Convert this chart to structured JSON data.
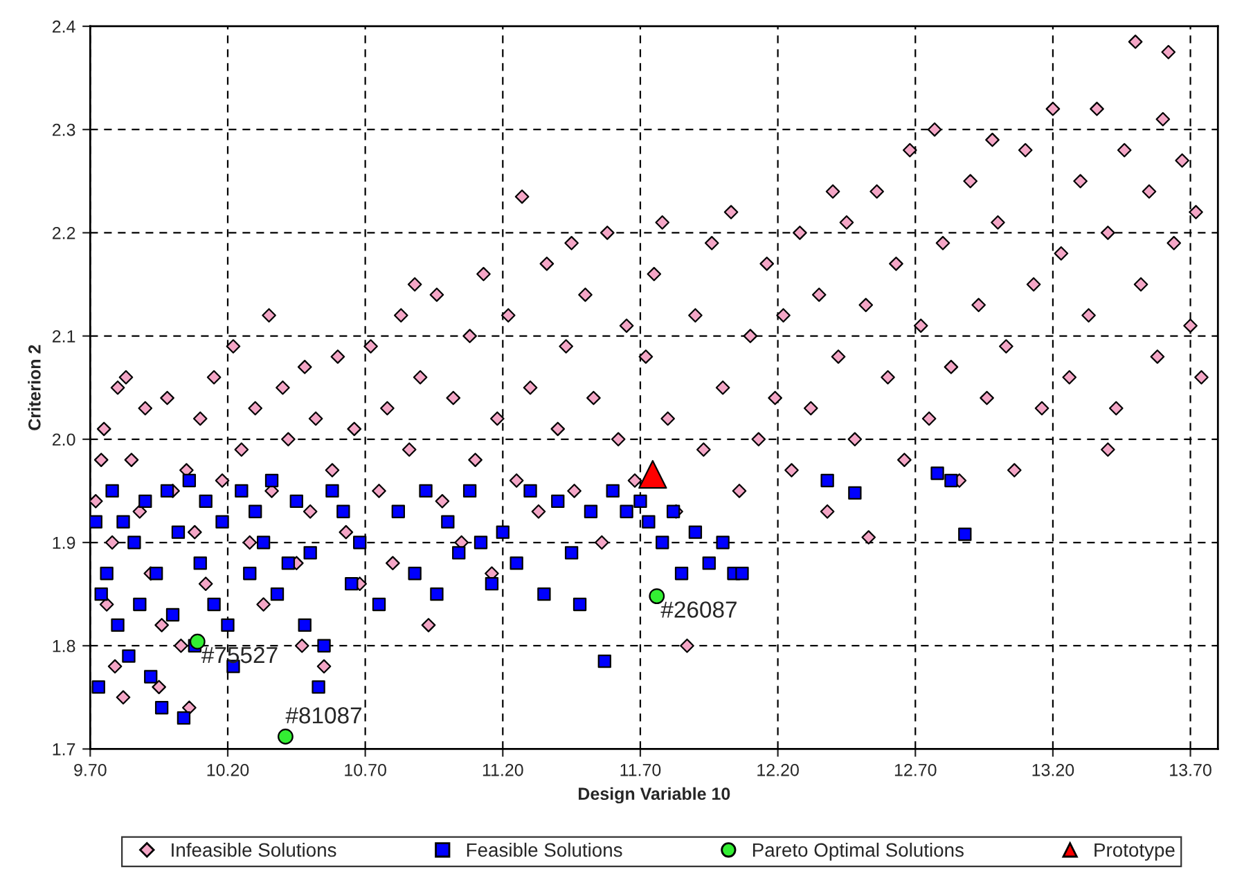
{
  "chart_data": {
    "type": "scatter",
    "xlabel": "Design Variable 10",
    "ylabel": "Criterion 2",
    "xlim": [
      9.7,
      13.8
    ],
    "ylim": [
      1.7,
      2.4
    ],
    "xticks": [
      {
        "value": 9.7,
        "label": "9.70"
      },
      {
        "value": 10.2,
        "label": "10.20"
      },
      {
        "value": 10.7,
        "label": "10.70"
      },
      {
        "value": 11.2,
        "label": "11.20"
      },
      {
        "value": 11.7,
        "label": "11.70"
      },
      {
        "value": 12.2,
        "label": "12.20"
      },
      {
        "value": 12.7,
        "label": "12.70"
      },
      {
        "value": 13.2,
        "label": "13.20"
      },
      {
        "value": 13.7,
        "label": "13.70"
      }
    ],
    "yticks": [
      {
        "value": 1.7,
        "label": "1.7"
      },
      {
        "value": 1.8,
        "label": "1.8"
      },
      {
        "value": 1.9,
        "label": "1.9"
      },
      {
        "value": 2.0,
        "label": "2.0"
      },
      {
        "value": 2.1,
        "label": "2.1"
      },
      {
        "value": 2.2,
        "label": "2.2"
      },
      {
        "value": 2.3,
        "label": "2.3"
      },
      {
        "value": 2.4,
        "label": "2.4"
      }
    ],
    "grid": true,
    "legend": "bottom",
    "series": [
      {
        "name": "Infeasible Solutions",
        "color": "#f4a6c6",
        "marker": "diamond",
        "x": [
          9.72,
          9.74,
          9.75,
          9.78,
          9.8,
          9.83,
          9.76,
          9.79,
          9.85,
          9.88,
          9.9,
          9.92,
          9.96,
          9.98,
          10.0,
          10.03,
          10.05,
          10.08,
          10.1,
          10.12,
          10.15,
          10.18,
          9.82,
          9.95,
          10.06,
          10.22,
          10.25,
          10.28,
          10.3,
          10.33,
          10.36,
          10.4,
          10.42,
          10.45,
          10.48,
          10.5,
          10.52,
          10.55,
          10.58,
          10.6,
          10.63,
          10.66,
          10.68,
          10.35,
          10.47,
          10.72,
          10.75,
          10.78,
          10.8,
          10.83,
          10.86,
          10.9,
          10.93,
          10.96,
          10.98,
          11.02,
          11.05,
          11.08,
          11.1,
          11.13,
          11.16,
          11.18,
          10.88,
          11.22,
          11.25,
          11.27,
          11.3,
          11.33,
          11.36,
          11.4,
          11.43,
          11.46,
          11.5,
          11.53,
          11.56,
          11.58,
          11.62,
          11.65,
          11.68,
          11.45,
          11.72,
          11.75,
          11.8,
          11.83,
          11.87,
          11.9,
          11.93,
          11.96,
          12.0,
          12.03,
          12.06,
          12.1,
          12.13,
          12.16,
          12.19,
          11.78,
          12.22,
          12.25,
          12.28,
          12.32,
          12.35,
          12.38,
          12.42,
          12.45,
          12.48,
          12.52,
          12.53,
          12.56,
          12.6,
          12.63,
          12.66,
          12.68,
          12.4,
          12.72,
          12.75,
          12.77,
          12.8,
          12.83,
          12.86,
          12.9,
          12.93,
          12.96,
          13.0,
          13.03,
          13.06,
          13.1,
          13.13,
          13.16,
          13.2,
          12.98,
          13.23,
          13.26,
          13.3,
          13.33,
          13.36,
          13.4,
          13.43,
          13.46,
          13.5,
          13.52,
          13.55,
          13.58,
          13.62,
          13.64,
          13.67,
          13.7,
          13.72,
          13.74,
          13.4,
          13.6
        ],
        "values": [
          1.94,
          1.98,
          2.01,
          1.9,
          2.05,
          2.06,
          1.84,
          1.78,
          1.98,
          1.93,
          2.03,
          1.87,
          1.82,
          2.04,
          1.95,
          1.8,
          1.97,
          1.91,
          2.02,
          1.86,
          2.06,
          1.96,
          1.75,
          1.76,
          1.74,
          2.09,
          1.99,
          1.9,
          2.03,
          1.84,
          1.95,
          2.05,
          2.0,
          1.88,
          2.07,
          1.93,
          2.02,
          1.78,
          1.97,
          2.08,
          1.91,
          2.01,
          1.86,
          2.12,
          1.8,
          2.09,
          1.95,
          2.03,
          1.88,
          2.12,
          1.99,
          2.06,
          1.82,
          2.14,
          1.94,
          2.04,
          1.9,
          2.1,
          1.98,
          2.16,
          1.87,
          2.02,
          2.15,
          2.12,
          1.96,
          2.235,
          2.05,
          1.93,
          2.17,
          2.01,
          2.09,
          1.95,
          2.14,
          2.04,
          1.9,
          2.2,
          2.0,
          2.11,
          1.96,
          2.19,
          2.08,
          2.16,
          2.02,
          1.93,
          1.8,
          2.12,
          1.99,
          2.19,
          2.05,
          2.22,
          1.95,
          2.1,
          2.0,
          2.17,
          2.04,
          2.21,
          2.12,
          1.97,
          2.2,
          2.03,
          2.14,
          1.93,
          2.08,
          2.21,
          2.0,
          2.13,
          1.905,
          2.24,
          2.06,
          2.17,
          1.98,
          2.28,
          2.24,
          2.11,
          2.02,
          2.3,
          2.19,
          2.07,
          1.96,
          2.25,
          2.13,
          2.04,
          2.21,
          2.09,
          1.97,
          2.28,
          2.15,
          2.03,
          2.32,
          2.29,
          2.18,
          2.06,
          2.25,
          2.12,
          2.32,
          2.2,
          2.03,
          2.28,
          2.385,
          2.15,
          2.24,
          2.08,
          2.375,
          2.19,
          2.27,
          2.11,
          2.22,
          2.06,
          1.99,
          2.31
        ]
      },
      {
        "name": "Feasible Solutions",
        "color": "#0000ff",
        "marker": "square",
        "x": [
          9.72,
          9.73,
          9.74,
          9.76,
          9.78,
          9.8,
          9.82,
          9.84,
          9.86,
          9.88,
          9.9,
          9.92,
          9.94,
          9.96,
          9.98,
          10.0,
          10.02,
          10.04,
          10.06,
          10.08,
          10.1,
          10.12,
          10.15,
          10.18,
          10.2,
          10.22,
          10.25,
          10.28,
          10.3,
          10.33,
          10.36,
          10.38,
          10.42,
          10.45,
          10.48,
          10.5,
          10.53,
          10.55,
          10.58,
          10.62,
          10.65,
          10.68,
          10.75,
          10.82,
          10.88,
          10.92,
          10.96,
          11.0,
          11.04,
          11.08,
          11.12,
          11.16,
          11.2,
          11.25,
          11.3,
          11.35,
          11.4,
          11.45,
          11.48,
          11.52,
          11.57,
          11.6,
          11.65,
          11.7,
          11.73,
          11.78,
          11.82,
          11.85,
          11.9,
          11.95,
          12.0,
          12.04,
          12.07,
          12.38,
          12.48,
          12.78,
          12.83,
          12.88
        ],
        "values": [
          1.92,
          1.76,
          1.85,
          1.87,
          1.95,
          1.82,
          1.92,
          1.79,
          1.9,
          1.84,
          1.94,
          1.77,
          1.87,
          1.74,
          1.95,
          1.83,
          1.91,
          1.73,
          1.96,
          1.8,
          1.88,
          1.94,
          1.84,
          1.92,
          1.82,
          1.78,
          1.95,
          1.87,
          1.93,
          1.9,
          1.96,
          1.85,
          1.88,
          1.94,
          1.82,
          1.89,
          1.76,
          1.8,
          1.95,
          1.93,
          1.86,
          1.9,
          1.84,
          1.93,
          1.87,
          1.95,
          1.85,
          1.92,
          1.89,
          1.95,
          1.9,
          1.86,
          1.91,
          1.88,
          1.95,
          1.85,
          1.94,
          1.89,
          1.84,
          1.93,
          1.785,
          1.95,
          1.93,
          1.94,
          1.92,
          1.9,
          1.93,
          1.87,
          1.91,
          1.88,
          1.9,
          1.87,
          1.87,
          1.96,
          1.948,
          1.967,
          1.96,
          1.908
        ]
      },
      {
        "name": "Pareto Optimal Solutions",
        "color": "#33ee33",
        "marker": "circle",
        "x": [
          10.09,
          10.41,
          11.76
        ],
        "values": [
          1.804,
          1.712,
          1.848
        ]
      },
      {
        "name": "Prototype",
        "color": "#ff0000",
        "marker": "triangle",
        "x": [
          11.745
        ],
        "values": [
          1.966
        ]
      }
    ],
    "annotations": [
      {
        "text": "#75527",
        "x": 10.09,
        "y": 1.804
      },
      {
        "text": "#81087",
        "x": 10.41,
        "y": 1.712
      },
      {
        "text": "#26087",
        "x": 11.76,
        "y": 1.848
      }
    ]
  }
}
